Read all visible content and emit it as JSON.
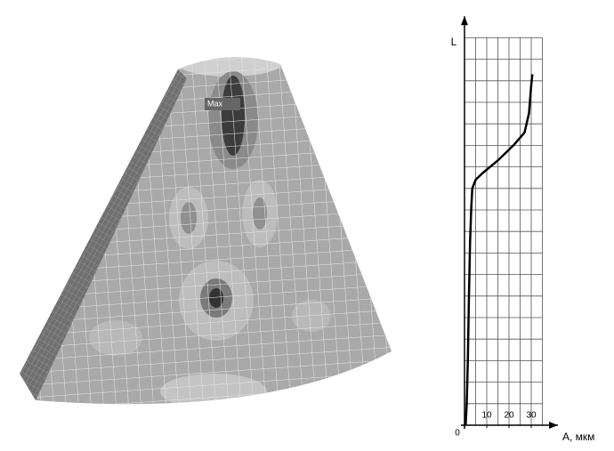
{
  "model_label": "Max",
  "chart_data": {
    "type": "line",
    "x_label": "A, мкм",
    "y_label": "L",
    "origin_label": "0",
    "xlim": [
      0,
      42
    ],
    "ylim": [
      0,
      19
    ],
    "xticks": [
      10,
      20,
      30
    ],
    "x_grid": [
      0,
      5,
      10,
      15,
      20,
      25,
      30,
      35
    ],
    "y_grid": [
      0,
      1,
      2,
      3,
      4,
      5,
      6,
      7,
      8,
      9,
      10,
      11,
      12,
      13,
      14,
      15,
      16,
      17,
      18
    ],
    "grid": true,
    "series": [
      {
        "color": "#000000",
        "x": [
          0.5,
          1,
          1.5,
          2,
          2.5,
          3,
          3.5,
          5,
          8,
          15,
          22,
          27,
          29,
          30,
          30.5
        ],
        "values": [
          0,
          1,
          3,
          6,
          8.5,
          10,
          11,
          11.4,
          11.7,
          12.3,
          13,
          13.6,
          14.5,
          15.8,
          16.3
        ]
      }
    ]
  }
}
